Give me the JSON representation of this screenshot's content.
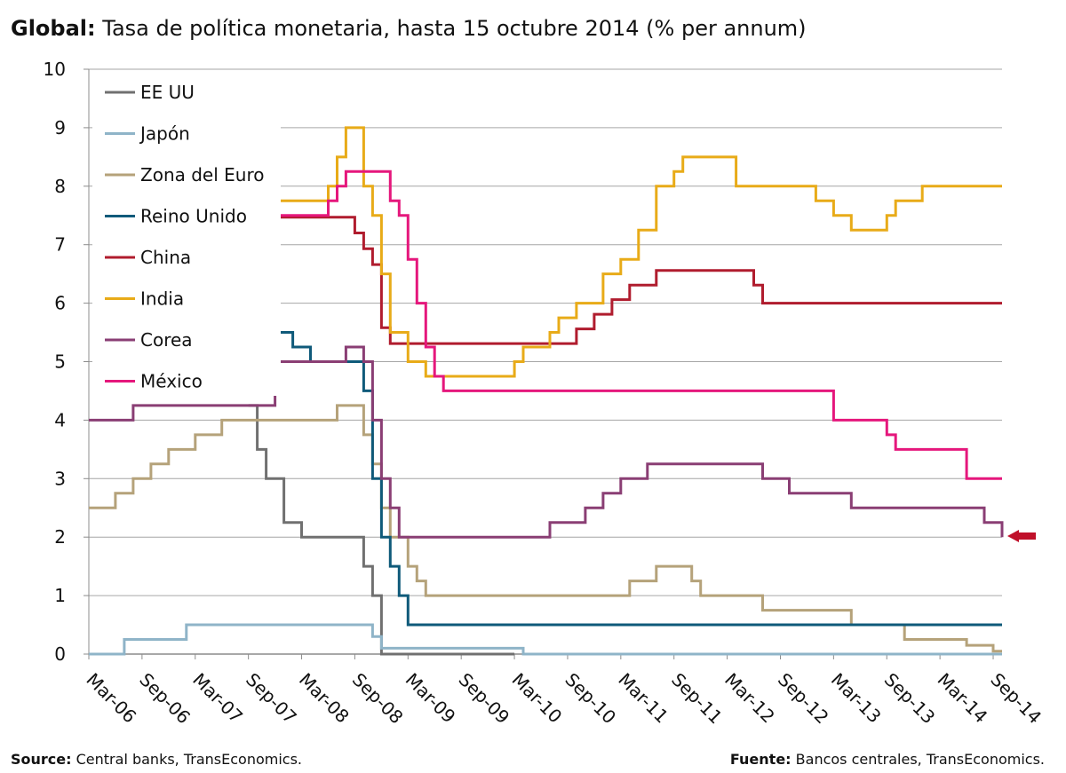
{
  "header": {
    "title_bold": "Global:",
    "title_rest": "Tasa de política monetaria, hasta 15 octubre 2014 (% per annum)"
  },
  "footer": {
    "source_label": "Source:",
    "source_text": "Central banks, TransEconomics.",
    "fuente_label": "Fuente:",
    "fuente_text": "Bancos centrales, TransEconomics."
  },
  "chart_data": {
    "type": "line",
    "title": "Global: Tasa de política monetaria, hasta 15 octubre 2014 (% per annum)",
    "xlabel": "",
    "ylabel": "",
    "x_range": [
      "2006-03",
      "2014-10"
    ],
    "ylim": [
      0,
      10
    ],
    "y_ticks": [
      0,
      1,
      2,
      3,
      4,
      5,
      6,
      7,
      8,
      9,
      10
    ],
    "x_tick_labels": [
      "Mar-06",
      "Sep-06",
      "Mar-07",
      "Sep-07",
      "Mar-08",
      "Sep-08",
      "Mar-09",
      "Sep-09",
      "Mar-10",
      "Sep-10",
      "Mar-11",
      "Sep-11",
      "Mar-12",
      "Sep-12",
      "Mar-13",
      "Sep-13",
      "Mar-14",
      "Sep-14"
    ],
    "grid": "horizontal",
    "legend_position": "top-left",
    "annotation": "arrow pointing at the last value of Corea (2.0)",
    "series": [
      {
        "name": "EE UU",
        "color": "#707070",
        "points": [
          [
            "2007-09",
            4.25
          ],
          [
            "2007-10",
            3.5
          ],
          [
            "2007-11",
            3.0
          ],
          [
            "2007-12",
            3.0
          ],
          [
            "2008-01",
            2.25
          ],
          [
            "2008-03",
            2.0
          ],
          [
            "2008-09",
            2.0
          ],
          [
            "2008-10",
            1.5
          ],
          [
            "2008-11",
            1.0
          ],
          [
            "2008-12",
            0.0
          ],
          [
            "2010-03",
            0.0
          ]
        ]
      },
      {
        "name": "Japón",
        "color": "#8fb4c8",
        "points": [
          [
            "2006-03",
            0.0
          ],
          [
            "2006-07",
            0.25
          ],
          [
            "2007-02",
            0.5
          ],
          [
            "2008-10",
            0.5
          ],
          [
            "2008-11",
            0.3
          ],
          [
            "2008-12",
            0.1
          ],
          [
            "2010-03",
            0.1
          ],
          [
            "2010-04",
            0.0
          ],
          [
            "2014-10",
            0.0
          ]
        ]
      },
      {
        "name": "Zona del Euro",
        "color": "#b5a27a",
        "points": [
          [
            "2006-03",
            2.5
          ],
          [
            "2006-06",
            2.75
          ],
          [
            "2006-08",
            3.0
          ],
          [
            "2006-10",
            3.25
          ],
          [
            "2006-12",
            3.5
          ],
          [
            "2007-03",
            3.75
          ],
          [
            "2007-06",
            4.0
          ],
          [
            "2008-07",
            4.25
          ],
          [
            "2008-10",
            3.75
          ],
          [
            "2008-11",
            3.25
          ],
          [
            "2008-12",
            2.5
          ],
          [
            "2009-01",
            2.0
          ],
          [
            "2009-03",
            1.5
          ],
          [
            "2009-04",
            1.25
          ],
          [
            "2009-05",
            1.0
          ],
          [
            "2011-04",
            1.25
          ],
          [
            "2011-07",
            1.5
          ],
          [
            "2011-11",
            1.25
          ],
          [
            "2011-12",
            1.0
          ],
          [
            "2012-07",
            0.75
          ],
          [
            "2013-05",
            0.5
          ],
          [
            "2013-11",
            0.25
          ],
          [
            "2014-06",
            0.15
          ],
          [
            "2014-09",
            0.05
          ],
          [
            "2014-10",
            0.05
          ]
        ]
      },
      {
        "name": "Reino Unido",
        "color": "#0f5a7a",
        "points": [
          [
            "2007-12",
            5.5
          ],
          [
            "2008-02",
            5.25
          ],
          [
            "2008-04",
            5.0
          ],
          [
            "2008-10",
            4.5
          ],
          [
            "2008-11",
            3.0
          ],
          [
            "2008-12",
            2.0
          ],
          [
            "2009-01",
            1.5
          ],
          [
            "2009-02",
            1.0
          ],
          [
            "2009-03",
            0.5
          ],
          [
            "2014-10",
            0.5
          ]
        ]
      },
      {
        "name": "China",
        "color": "#b01c2e",
        "points": [
          [
            "2007-12",
            7.47
          ],
          [
            "2008-09",
            7.2
          ],
          [
            "2008-10",
            6.93
          ],
          [
            "2008-11",
            6.66
          ],
          [
            "2008-12",
            5.58
          ],
          [
            "2009-01",
            5.31
          ],
          [
            "2010-10",
            5.56
          ],
          [
            "2010-12",
            5.81
          ],
          [
            "2011-02",
            6.06
          ],
          [
            "2011-04",
            6.31
          ],
          [
            "2011-07",
            6.56
          ],
          [
            "2012-06",
            6.31
          ],
          [
            "2012-07",
            6.0
          ],
          [
            "2014-10",
            6.0
          ]
        ]
      },
      {
        "name": "India",
        "color": "#e8ab18",
        "points": [
          [
            "2007-12",
            7.75
          ],
          [
            "2008-06",
            8.0
          ],
          [
            "2008-07",
            8.5
          ],
          [
            "2008-08",
            9.0
          ],
          [
            "2008-10",
            8.0
          ],
          [
            "2008-11",
            7.5
          ],
          [
            "2008-12",
            6.5
          ],
          [
            "2009-01",
            5.5
          ],
          [
            "2009-03",
            5.0
          ],
          [
            "2009-05",
            4.75
          ],
          [
            "2010-03",
            5.0
          ],
          [
            "2010-04",
            5.25
          ],
          [
            "2010-07",
            5.5
          ],
          [
            "2010-08",
            5.75
          ],
          [
            "2010-10",
            6.0
          ],
          [
            "2011-01",
            6.5
          ],
          [
            "2011-03",
            6.75
          ],
          [
            "2011-05",
            7.25
          ],
          [
            "2011-07",
            8.0
          ],
          [
            "2011-09",
            8.25
          ],
          [
            "2011-10",
            8.5
          ],
          [
            "2012-04",
            8.0
          ],
          [
            "2013-01",
            7.75
          ],
          [
            "2013-03",
            7.5
          ],
          [
            "2013-05",
            7.25
          ],
          [
            "2013-09",
            7.5
          ],
          [
            "2013-10",
            7.75
          ],
          [
            "2014-01",
            8.0
          ],
          [
            "2014-10",
            8.0
          ]
        ]
      },
      {
        "name": "Corea",
        "color": "#8a3e74",
        "points": [
          [
            "2006-03",
            4.0
          ],
          [
            "2006-08",
            4.25
          ],
          [
            "2006-09",
            4.25
          ],
          [
            "2007-12",
            5.0
          ],
          [
            "2008-08",
            5.25
          ],
          [
            "2008-10",
            5.0
          ],
          [
            "2008-11",
            4.0
          ],
          [
            "2008-12",
            3.0
          ],
          [
            "2009-01",
            2.5
          ],
          [
            "2009-02",
            2.0
          ],
          [
            "2010-07",
            2.25
          ],
          [
            "2010-11",
            2.5
          ],
          [
            "2011-01",
            2.75
          ],
          [
            "2011-03",
            3.0
          ],
          [
            "2011-06",
            3.25
          ],
          [
            "2012-07",
            3.0
          ],
          [
            "2012-10",
            2.75
          ],
          [
            "2013-05",
            2.5
          ],
          [
            "2014-08",
            2.25
          ],
          [
            "2014-10",
            2.0
          ]
        ]
      },
      {
        "name": "México",
        "color": "#e5177c",
        "points": [
          [
            "2007-12",
            7.5
          ],
          [
            "2008-06",
            7.75
          ],
          [
            "2008-07",
            8.0
          ],
          [
            "2008-08",
            8.25
          ],
          [
            "2009-01",
            7.75
          ],
          [
            "2009-02",
            7.5
          ],
          [
            "2009-03",
            6.75
          ],
          [
            "2009-04",
            6.0
          ],
          [
            "2009-05",
            5.25
          ],
          [
            "2009-06",
            4.75
          ],
          [
            "2009-07",
            4.5
          ],
          [
            "2013-03",
            4.0
          ],
          [
            "2013-09",
            3.75
          ],
          [
            "2013-10",
            3.5
          ],
          [
            "2014-06",
            3.0
          ],
          [
            "2014-10",
            3.0
          ]
        ]
      }
    ]
  }
}
